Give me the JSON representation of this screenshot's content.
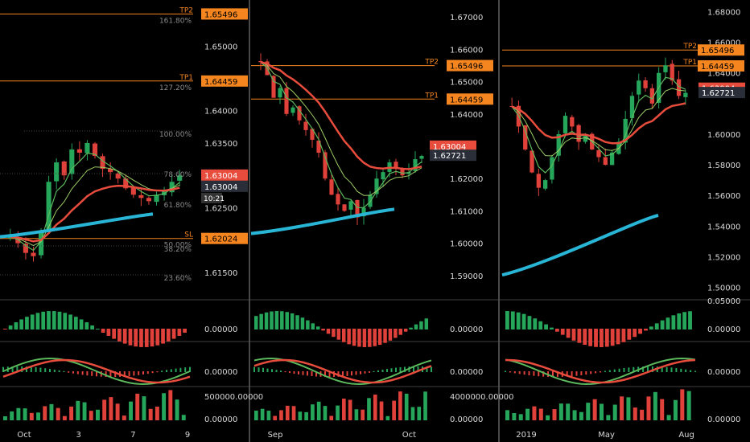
{
  "colors": {
    "background": "#000000",
    "up": "#26a65b",
    "down": "#e0413a",
    "ema_slow": "#e74c3c",
    "ema_fast": "#5cb85c",
    "sma_long": "#29b6d6",
    "level_line": "#f5851f",
    "axis_text": "#d9d9d9",
    "fib_text": "#8c8c8c",
    "separator": "#777777",
    "price_tag_red": "#e74c3c",
    "price_tag_dark": "#2a2e39"
  },
  "chart_data": [
    {
      "type": "candlestick",
      "panel": "left",
      "timeframe_hint": "daily",
      "x_tick_labels": [
        "Oct",
        "3",
        "7",
        "9"
      ],
      "y_tick_labels": [
        "1.65000",
        "1.64000",
        "1.63500",
        "1.62500",
        "1.61500"
      ],
      "ylim": [
        1.6115,
        1.6565
      ],
      "levels": [
        {
          "label": "TP2",
          "value": "1.65496",
          "fib": "161.80%"
        },
        {
          "label": "TP1",
          "value": "1.64459",
          "fib": "127.20%"
        },
        {
          "label": "SL",
          "value": "1.62024",
          "fib": "50.00%"
        }
      ],
      "fib_labels": [
        "100.00%",
        "78.60%",
        "61.80%",
        "38.20%",
        "23.60%"
      ],
      "price_tags": {
        "current": "1.63004",
        "last": "1.63004",
        "countdown": "10:21"
      },
      "indicators": {
        "oscillator_1_tick": "0.00000",
        "oscillator_2_tick": "0.00000",
        "volume_ticks": [
          "500000.00000",
          "0.00000"
        ]
      }
    },
    {
      "type": "candlestick",
      "panel": "middle",
      "timeframe_hint": "weekly",
      "x_tick_labels": [
        "Sep",
        "Oct"
      ],
      "y_tick_labels": [
        "1.67000",
        "1.66000",
        "1.65000",
        "1.64000",
        "1.62000",
        "1.61000",
        "1.60000",
        "1.59000"
      ],
      "ylim": [
        1.584,
        1.674
      ],
      "levels": [
        {
          "label": "TP2",
          "value": "1.65496"
        },
        {
          "label": "TP1",
          "value": "1.64459"
        }
      ],
      "price_tags": {
        "current": "1.63004",
        "last": "1.62721"
      },
      "indicators": {
        "oscillator_1_tick": "0.00000",
        "oscillator_2_tick": "0.00000",
        "volume_ticks": [
          "4000000.00000",
          "0.00000"
        ]
      }
    },
    {
      "type": "candlestick",
      "panel": "right",
      "timeframe_hint": "monthly",
      "x_tick_labels": [
        "2019",
        "May",
        "Aug"
      ],
      "y_tick_labels": [
        "1.68000",
        "1.66000",
        "1.64000",
        "1.60000",
        "1.58000",
        "1.56000",
        "1.54000",
        "1.52000",
        "1.50000"
      ],
      "ylim": [
        1.495,
        1.685
      ],
      "levels": [
        {
          "label": "TP2",
          "value": "1.65496"
        },
        {
          "label": "TP1",
          "value": "1.64459"
        }
      ],
      "price_tags": {
        "current": "1.63004",
        "last": "1.62721"
      },
      "indicators": {
        "oscillator_1_ticks": [
          "0.05000",
          "0.00000"
        ],
        "oscillator_2_tick": "0.00000",
        "volume_tick": "0.00000"
      }
    }
  ]
}
